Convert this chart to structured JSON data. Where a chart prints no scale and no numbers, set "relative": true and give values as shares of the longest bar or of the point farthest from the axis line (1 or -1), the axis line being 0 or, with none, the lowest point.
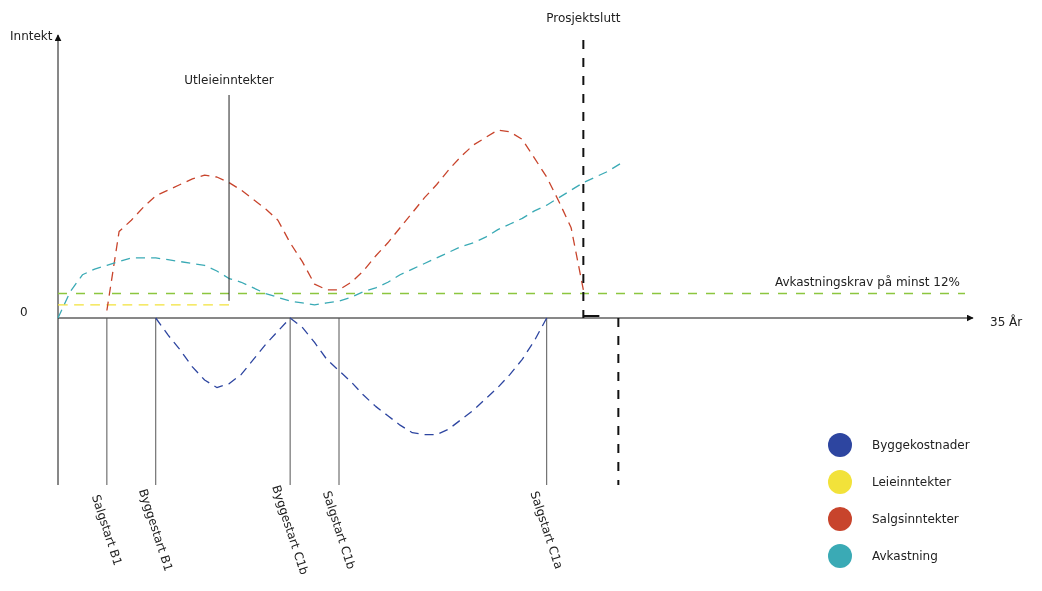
{
  "chart_data": {
    "type": "line",
    "relative": true,
    "legend": "bottom right",
    "marker": "none",
    "line_style": "dashed",
    "categories": [
      null,
      null,
      null,
      null,
      "Salgstart B1",
      null,
      null,
      null,
      "Byggestart B1",
      null,
      null,
      null,
      null,
      null,
      null,
      null,
      null,
      null,
      null,
      "Byggestart C1b",
      null,
      null,
      null,
      "Salgstart C1b",
      null,
      null,
      null,
      null,
      null,
      null,
      null,
      null,
      null,
      null,
      null,
      null,
      null,
      null,
      null,
      null,
      "Salgstart C1a",
      null,
      null,
      null,
      null,
      null,
      null
    ],
    "series": [
      {
        "name": "Byggekostnader",
        "color": "#2d45a0",
        "values": [
          null,
          null,
          null,
          null,
          null,
          null,
          null,
          null,
          0,
          -0.09,
          -0.17,
          -0.26,
          -0.33,
          -0.37,
          -0.35,
          -0.3,
          -0.22,
          -0.14,
          -0.07,
          0,
          -0.05,
          -0.13,
          -0.22,
          -0.28,
          -0.34,
          -0.41,
          -0.47,
          -0.52,
          -0.57,
          -0.61,
          -0.62,
          -0.62,
          -0.59,
          -0.54,
          -0.49,
          -0.43,
          -0.37,
          -0.3,
          -0.22,
          -0.12,
          0,
          null,
          null,
          null,
          null,
          null,
          null
        ]
      },
      {
        "name": "Leieinntekter",
        "color": "#f2e23a",
        "values": [
          0.07,
          0.07,
          0.07,
          0.07,
          0.07,
          0.07,
          0.07,
          0.07,
          0.07,
          0.07,
          0.07,
          0.07,
          0.07,
          0.07,
          0.07,
          null,
          null,
          null,
          null,
          null,
          null,
          null,
          null,
          null,
          null,
          null,
          null,
          null,
          null,
          null,
          null,
          null,
          null,
          null,
          null,
          null,
          null,
          null,
          null,
          null,
          null,
          null,
          null,
          null,
          null,
          null,
          null
        ]
      },
      {
        "name": "Salgsinntekter",
        "color": "#c8442c",
        "values": [
          null,
          null,
          null,
          null,
          0.04,
          0.46,
          0.52,
          0.59,
          0.65,
          0.68,
          0.71,
          0.74,
          0.76,
          0.75,
          0.72,
          0.68,
          0.63,
          0.58,
          0.52,
          0.4,
          0.3,
          0.18,
          0.15,
          0.15,
          0.19,
          0.25,
          0.33,
          0.4,
          0.48,
          0.56,
          0.64,
          0.71,
          0.79,
          0.86,
          0.92,
          0.96,
          1,
          0.99,
          0.95,
          0.85,
          0.75,
          0.62,
          0.48,
          0.15,
          null,
          null,
          null
        ]
      },
      {
        "name": "Avkastning",
        "color": "#3aaab5",
        "values": [
          0,
          0.14,
          0.23,
          0.26,
          0.28,
          0.3,
          0.32,
          0.32,
          0.32,
          0.31,
          0.3,
          0.29,
          0.28,
          0.25,
          0.21,
          0.19,
          0.16,
          0.13,
          0.11,
          0.09,
          0.08,
          0.07,
          0.08,
          0.09,
          0.11,
          0.14,
          0.16,
          0.19,
          0.23,
          0.26,
          0.29,
          0.32,
          0.35,
          0.38,
          0.4,
          0.43,
          0.47,
          0.5,
          0.53,
          0.57,
          0.6,
          0.64,
          0.68,
          0.72,
          0.75,
          0.78,
          0.82
        ]
      }
    ],
    "ref_lines": [
      {
        "axis": "y",
        "value": 0.13,
        "label": "Avkastningskrav på minst 12%",
        "color": "#8cc63f",
        "line_style": "dashed"
      }
    ],
    "annotations": [
      "35 År",
      "0",
      {
        "text": "Utleieinntekter",
        "y": 0.07
      },
      "Prosjektslutt",
      "Inntekt"
    ]
  }
}
